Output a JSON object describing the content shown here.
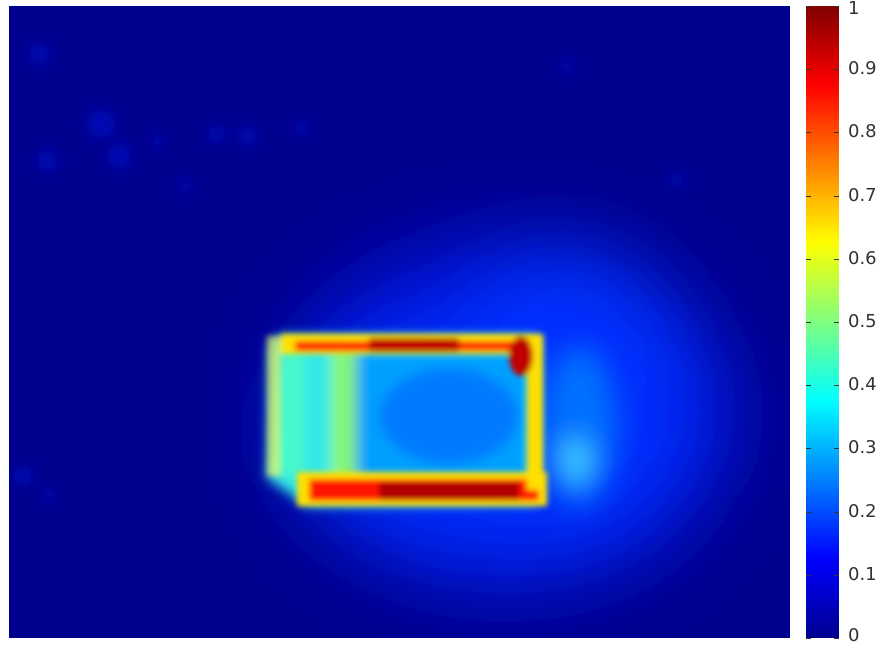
{
  "chart_data": {
    "type": "heatmap",
    "title": "",
    "xlabel": "",
    "ylabel": "",
    "colormap": "jet",
    "axes_visible": false,
    "grid": false,
    "value_range": [
      0,
      1
    ],
    "colorbar": {
      "placement": "right",
      "ticks": [
        {
          "value": 0,
          "label": "0"
        },
        {
          "value": 0.1,
          "label": "0.1"
        },
        {
          "value": 0.2,
          "label": "0.2"
        },
        {
          "value": 0.3,
          "label": "0.3"
        },
        {
          "value": 0.4,
          "label": "0.4"
        },
        {
          "value": 0.5,
          "label": "0.5"
        },
        {
          "value": 0.6,
          "label": "0.6"
        },
        {
          "value": 0.7,
          "label": "0.7"
        },
        {
          "value": 0.8,
          "label": "0.8"
        },
        {
          "value": 0.9,
          "label": "0.9"
        },
        {
          "value": 1,
          "label": "1"
        }
      ]
    },
    "background_level": 0.03,
    "observed_levels": {
      "outer_glow": 0.15,
      "box_left_edge": 0.45,
      "box_top_edge": 0.9,
      "box_bottom_edge": 0.95,
      "box_top_right_corner": 0.95,
      "box_interior": 0.32,
      "right_bright_spot": 0.3
    }
  }
}
